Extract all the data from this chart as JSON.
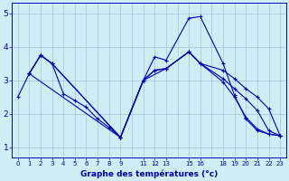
{
  "bg_color": "#d0ecf5",
  "grid_color": "#a8cce0",
  "line_color": "#0000bb",
  "ylim": [
    0.7,
    5.3
  ],
  "xlim": [
    -0.5,
    23.5
  ],
  "yticks": [
    1,
    2,
    3,
    4,
    5
  ],
  "ytick_labels": [
    "1",
    "2",
    "3",
    "4",
    "5"
  ],
  "xtick_positions": [
    0,
    1,
    2,
    3,
    4,
    5,
    6,
    7,
    8,
    9,
    11,
    12,
    13,
    15,
    16,
    18,
    19,
    20,
    21,
    22,
    23
  ],
  "xtick_labels": [
    "0",
    "1",
    "2",
    "3",
    "4",
    "5",
    "6",
    "7",
    "8",
    "9",
    "11",
    "12",
    "13",
    "15",
    "16",
    "18",
    "19",
    "20",
    "21",
    "22",
    "23"
  ],
  "xlabel": "Graphe des températures (°c)",
  "lines": [
    {
      "x": [
        0,
        1,
        2,
        3,
        4,
        5,
        6,
        7,
        8,
        9,
        11,
        12,
        13,
        15,
        16,
        18,
        19,
        20,
        21,
        22,
        23
      ],
      "y": [
        2.5,
        3.2,
        3.75,
        3.5,
        2.6,
        2.4,
        2.2,
        1.85,
        1.6,
        1.3,
        3.0,
        3.7,
        3.6,
        4.85,
        4.9,
        3.5,
        2.55,
        1.85,
        1.5,
        1.4,
        1.35
      ]
    },
    {
      "x": [
        1,
        2,
        3,
        9,
        11,
        12,
        13,
        15,
        16,
        18,
        19,
        20,
        21,
        22,
        23
      ],
      "y": [
        3.2,
        3.75,
        3.5,
        1.3,
        3.0,
        3.3,
        3.35,
        3.85,
        3.5,
        3.3,
        3.05,
        2.75,
        2.5,
        2.15,
        1.35
      ]
    },
    {
      "x": [
        1,
        2,
        3,
        9,
        11,
        12,
        13,
        15,
        16,
        18,
        19,
        20,
        21,
        22,
        23
      ],
      "y": [
        3.2,
        3.75,
        3.5,
        1.3,
        3.0,
        3.3,
        3.35,
        3.85,
        3.5,
        3.05,
        2.75,
        2.45,
        2.1,
        1.5,
        1.35
      ]
    },
    {
      "x": [
        1,
        9,
        11,
        13,
        15,
        16,
        18,
        19,
        20,
        21,
        22,
        23
      ],
      "y": [
        3.2,
        1.3,
        3.0,
        3.35,
        3.85,
        3.5,
        2.95,
        2.5,
        1.9,
        1.55,
        1.4,
        1.35
      ]
    }
  ]
}
